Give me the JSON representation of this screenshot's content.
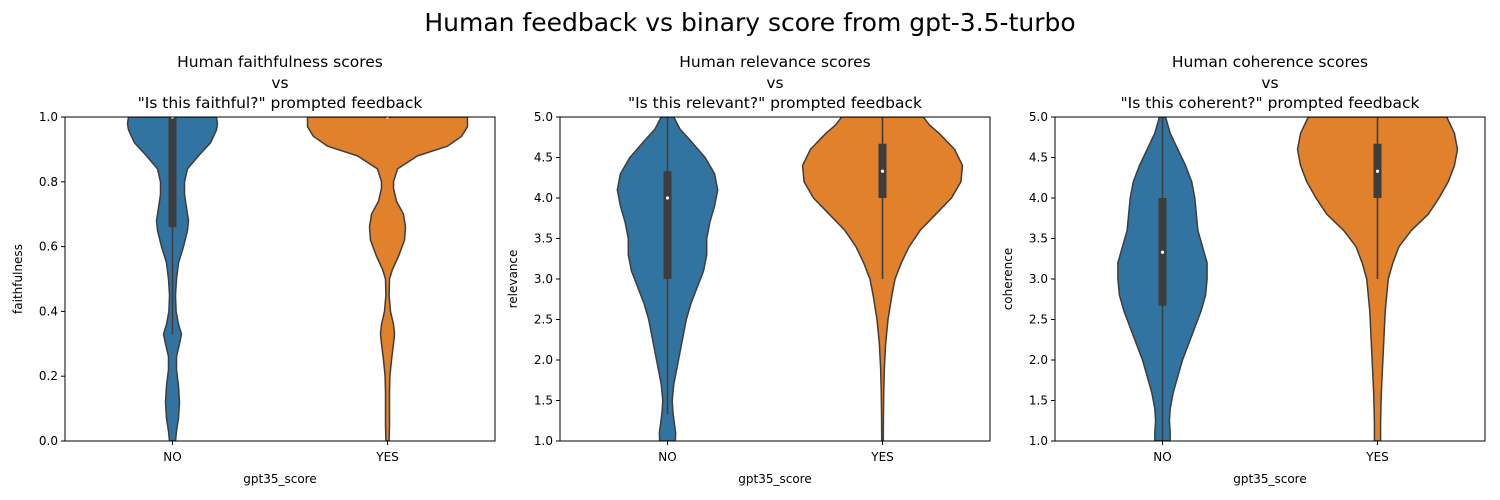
{
  "figure": {
    "suptitle": "Human feedback vs binary score from gpt-3.5-turbo"
  },
  "colors": {
    "no": "#3274a1",
    "yes": "#e1812c",
    "outline": "#3d3d3d",
    "box": "#3d3d3d",
    "median": "#ffffff"
  },
  "chart_data": [
    {
      "type": "violin",
      "title_lines": [
        "Human faithfulness scores",
        "vs",
        "\"Is this faithful?\" prompted feedback"
      ],
      "xlabel": "gpt35_score",
      "ylabel": "faithfulness",
      "categories": [
        "NO",
        "YES"
      ],
      "ylim": [
        0,
        1
      ],
      "yticks": [
        0.0,
        0.2,
        0.4,
        0.6,
        0.8,
        1.0
      ],
      "ytick_labels": [
        "0.0",
        "0.2",
        "0.4",
        "0.6",
        "0.8",
        "1.0"
      ],
      "series": [
        {
          "category": "NO",
          "color_key": "no",
          "median": 1.0,
          "q1": 0.66,
          "q3": 1.0,
          "whisker_low": 0.33,
          "whisker_high": 1.0,
          "density": [
            [
              0.0,
              0.015
            ],
            [
              0.03,
              0.02
            ],
            [
              0.07,
              0.03
            ],
            [
              0.12,
              0.035
            ],
            [
              0.17,
              0.03
            ],
            [
              0.22,
              0.02
            ],
            [
              0.26,
              0.02
            ],
            [
              0.3,
              0.035
            ],
            [
              0.33,
              0.045
            ],
            [
              0.36,
              0.03
            ],
            [
              0.4,
              0.018
            ],
            [
              0.45,
              0.015
            ],
            [
              0.5,
              0.02
            ],
            [
              0.55,
              0.03
            ],
            [
              0.6,
              0.055
            ],
            [
              0.65,
              0.075
            ],
            [
              0.68,
              0.08
            ],
            [
              0.72,
              0.07
            ],
            [
              0.76,
              0.06
            ],
            [
              0.8,
              0.06
            ],
            [
              0.84,
              0.075
            ],
            [
              0.88,
              0.13
            ],
            [
              0.92,
              0.19
            ],
            [
              0.96,
              0.22
            ],
            [
              0.98,
              0.225
            ],
            [
              1.0,
              0.22
            ]
          ]
        },
        {
          "category": "YES",
          "color_key": "yes",
          "median": 1.0,
          "q1": 1.0,
          "q3": 1.0,
          "whisker_low": 1.0,
          "whisker_high": 1.0,
          "density": [
            [
              0.0,
              0.008
            ],
            [
              0.05,
              0.01
            ],
            [
              0.1,
              0.01
            ],
            [
              0.15,
              0.01
            ],
            [
              0.2,
              0.012
            ],
            [
              0.25,
              0.02
            ],
            [
              0.3,
              0.03
            ],
            [
              0.33,
              0.035
            ],
            [
              0.36,
              0.03
            ],
            [
              0.4,
              0.015
            ],
            [
              0.45,
              0.008
            ],
            [
              0.5,
              0.01
            ],
            [
              0.53,
              0.025
            ],
            [
              0.57,
              0.055
            ],
            [
              0.62,
              0.085
            ],
            [
              0.66,
              0.09
            ],
            [
              0.7,
              0.08
            ],
            [
              0.74,
              0.045
            ],
            [
              0.78,
              0.03
            ],
            [
              0.8,
              0.03
            ],
            [
              0.84,
              0.05
            ],
            [
              0.88,
              0.15
            ],
            [
              0.91,
              0.3
            ],
            [
              0.94,
              0.37
            ],
            [
              0.97,
              0.4
            ],
            [
              1.0,
              0.4
            ]
          ]
        }
      ]
    },
    {
      "type": "violin",
      "title_lines": [
        "Human relevance scores",
        "vs",
        "\"Is this relevant?\" prompted feedback"
      ],
      "xlabel": "gpt35_score",
      "ylabel": "relevance",
      "categories": [
        "NO",
        "YES"
      ],
      "ylim": [
        1,
        5
      ],
      "yticks": [
        1.0,
        1.5,
        2.0,
        2.5,
        3.0,
        3.5,
        4.0,
        4.5,
        5.0
      ],
      "ytick_labels": [
        "1.0",
        "1.5",
        "2.0",
        "2.5",
        "3.0",
        "3.5",
        "4.0",
        "4.5",
        "5.0"
      ],
      "series": [
        {
          "category": "NO",
          "color_key": "no",
          "median": 4.0,
          "q1": 3.0,
          "q3": 4.33,
          "whisker_low": 1.33,
          "whisker_high": 5.0,
          "density": [
            [
              1.0,
              0.05
            ],
            [
              1.1,
              0.052
            ],
            [
              1.2,
              0.045
            ],
            [
              1.35,
              0.035
            ],
            [
              1.5,
              0.03
            ],
            [
              1.7,
              0.04
            ],
            [
              1.9,
              0.06
            ],
            [
              2.1,
              0.08
            ],
            [
              2.3,
              0.1
            ],
            [
              2.5,
              0.12
            ],
            [
              2.7,
              0.15
            ],
            [
              2.9,
              0.19
            ],
            [
              3.1,
              0.23
            ],
            [
              3.3,
              0.25
            ],
            [
              3.5,
              0.25
            ],
            [
              3.7,
              0.27
            ],
            [
              3.9,
              0.3
            ],
            [
              4.1,
              0.32
            ],
            [
              4.3,
              0.3
            ],
            [
              4.5,
              0.24
            ],
            [
              4.7,
              0.15
            ],
            [
              4.85,
              0.08
            ],
            [
              5.0,
              0.04
            ]
          ]
        },
        {
          "category": "YES",
          "color_key": "yes",
          "median": 4.33,
          "q1": 4.0,
          "q3": 4.67,
          "whisker_low": 3.0,
          "whisker_high": 5.0,
          "density": [
            [
              1.0,
              0.005
            ],
            [
              1.3,
              0.006
            ],
            [
              1.6,
              0.008
            ],
            [
              1.9,
              0.012
            ],
            [
              2.2,
              0.02
            ],
            [
              2.5,
              0.035
            ],
            [
              2.8,
              0.06
            ],
            [
              3.0,
              0.08
            ],
            [
              3.2,
              0.12
            ],
            [
              3.4,
              0.17
            ],
            [
              3.6,
              0.24
            ],
            [
              3.8,
              0.34
            ],
            [
              4.0,
              0.44
            ],
            [
              4.2,
              0.5
            ],
            [
              4.4,
              0.51
            ],
            [
              4.6,
              0.46
            ],
            [
              4.8,
              0.36
            ],
            [
              4.9,
              0.3
            ],
            [
              5.0,
              0.26
            ]
          ]
        }
      ]
    },
    {
      "type": "violin",
      "title_lines": [
        "Human coherence scores",
        "vs",
        "\"Is this coherent?\" prompted feedback"
      ],
      "xlabel": "gpt35_score",
      "ylabel": "coherence",
      "categories": [
        "NO",
        "YES"
      ],
      "ylim": [
        1,
        5
      ],
      "yticks": [
        1.0,
        1.5,
        2.0,
        2.5,
        3.0,
        3.5,
        4.0,
        4.5,
        5.0
      ],
      "ytick_labels": [
        "1.0",
        "1.5",
        "2.0",
        "2.5",
        "3.0",
        "3.5",
        "4.0",
        "4.5",
        "5.0"
      ],
      "series": [
        {
          "category": "NO",
          "color_key": "no",
          "median": 3.33,
          "q1": 2.67,
          "q3": 4.0,
          "whisker_low": 1.0,
          "whisker_high": 5.0,
          "density": [
            [
              1.0,
              0.05
            ],
            [
              1.1,
              0.05
            ],
            [
              1.25,
              0.045
            ],
            [
              1.4,
              0.05
            ],
            [
              1.6,
              0.07
            ],
            [
              1.8,
              0.1
            ],
            [
              2.0,
              0.13
            ],
            [
              2.2,
              0.17
            ],
            [
              2.4,
              0.21
            ],
            [
              2.6,
              0.25
            ],
            [
              2.8,
              0.28
            ],
            [
              3.0,
              0.29
            ],
            [
              3.2,
              0.29
            ],
            [
              3.4,
              0.26
            ],
            [
              3.6,
              0.23
            ],
            [
              3.8,
              0.22
            ],
            [
              4.0,
              0.21
            ],
            [
              4.2,
              0.19
            ],
            [
              4.4,
              0.15
            ],
            [
              4.6,
              0.1
            ],
            [
              4.8,
              0.05
            ],
            [
              5.0,
              0.02
            ]
          ]
        },
        {
          "category": "YES",
          "color_key": "yes",
          "median": 4.33,
          "q1": 4.0,
          "q3": 4.67,
          "whisker_low": 3.0,
          "whisker_high": 5.0,
          "density": [
            [
              1.0,
              0.02
            ],
            [
              1.2,
              0.02
            ],
            [
              1.4,
              0.022
            ],
            [
              1.6,
              0.025
            ],
            [
              1.8,
              0.03
            ],
            [
              2.0,
              0.035
            ],
            [
              2.2,
              0.04
            ],
            [
              2.4,
              0.045
            ],
            [
              2.6,
              0.05
            ],
            [
              2.8,
              0.06
            ],
            [
              3.0,
              0.07
            ],
            [
              3.2,
              0.1
            ],
            [
              3.4,
              0.14
            ],
            [
              3.6,
              0.22
            ],
            [
              3.8,
              0.33
            ],
            [
              4.0,
              0.4
            ],
            [
              4.2,
              0.46
            ],
            [
              4.4,
              0.5
            ],
            [
              4.6,
              0.52
            ],
            [
              4.8,
              0.5
            ],
            [
              5.0,
              0.45
            ]
          ]
        }
      ]
    }
  ]
}
